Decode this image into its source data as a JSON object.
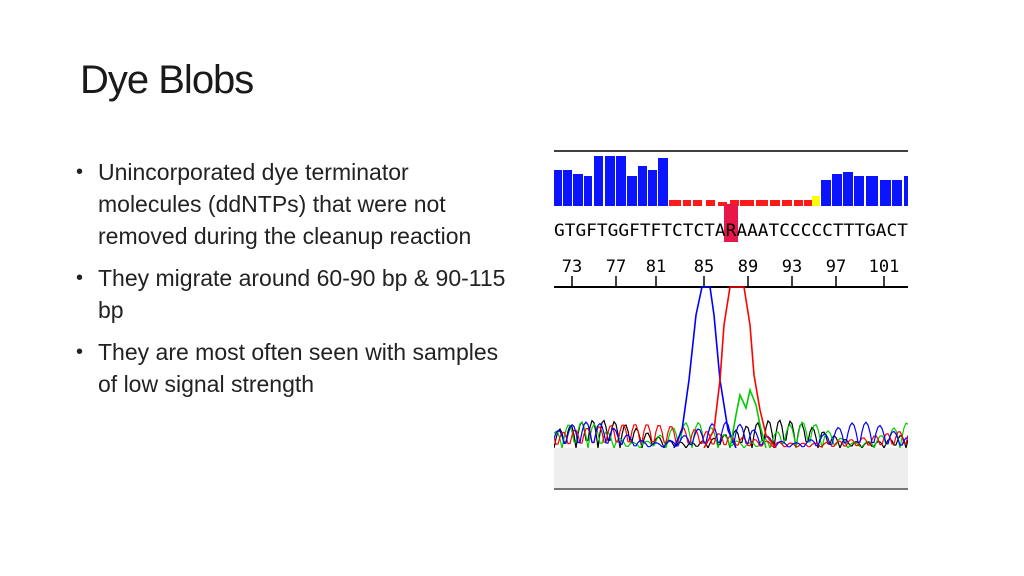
{
  "slide": {
    "title": "Dye Blobs",
    "bullets": [
      "Unincorporated dye terminator molecules (ddNTPs) that were not removed during the cleanup reaction",
      "They migrate around 60-90 bp & 90-115 bp",
      "They are most often seen with samples of low signal strength"
    ]
  },
  "figure": {
    "sequence_text": "GTGFTGGFTFTCTCTARAAATCCCCCTTTGACT",
    "position_ticks": [
      "73",
      "77",
      "81",
      "85",
      "89",
      "93",
      "97",
      "101"
    ],
    "colors": {
      "quality_high": "#0a14ff",
      "quality_low": "#ff1a1a",
      "quality_mid": "#ffff00",
      "highlight": "#e8174a",
      "trace_A": "#00cc00",
      "trace_C": "#0000ff",
      "trace_G": "#000000",
      "trace_T": "#ff0000",
      "panel_bg": "#eeeeee"
    }
  }
}
